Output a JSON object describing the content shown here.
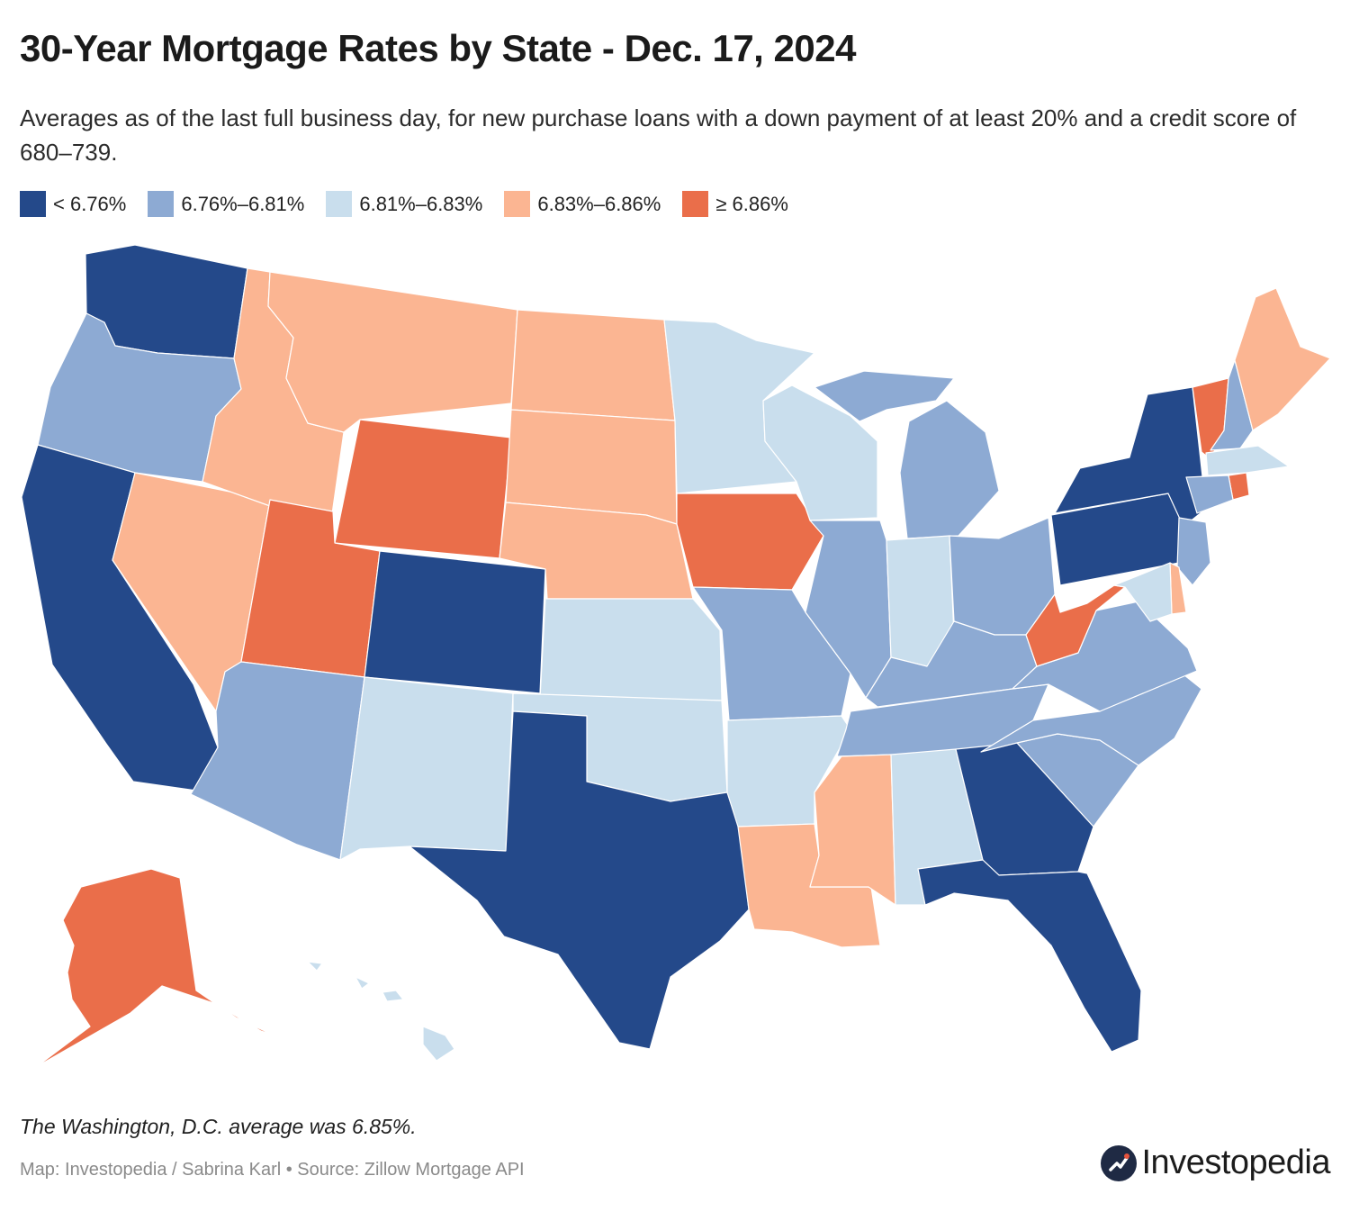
{
  "title": "30-Year Mortgage Rates by State - Dec. 17, 2024",
  "subtitle": "Averages as of the last full business day, for new purchase loans with a down payment of at least 20% and a credit score of 680–739.",
  "legend": [
    {
      "label": "< 6.76%",
      "color": "#24498a"
    },
    {
      "label": "6.76%–6.81%",
      "color": "#8daad3"
    },
    {
      "label": "6.81%–6.83%",
      "color": "#c9deed"
    },
    {
      "label": "6.83%–6.86%",
      "color": "#fbb592"
    },
    {
      "label": "≥ 6.86%",
      "color": "#ea6e4a"
    }
  ],
  "note": "The Washington, D.C. average was 6.85%.",
  "source": "Map: Investopedia / Sabrina Karl • Source: Zillow Mortgage API",
  "brand": "Investopedia",
  "brand_icon": "investopedia-logo-icon",
  "states": [
    {
      "code": "WA",
      "bin": 0
    },
    {
      "code": "OR",
      "bin": 1
    },
    {
      "code": "CA",
      "bin": 0
    },
    {
      "code": "NV",
      "bin": 3
    },
    {
      "code": "ID",
      "bin": 3
    },
    {
      "code": "MT",
      "bin": 3
    },
    {
      "code": "WY",
      "bin": 4
    },
    {
      "code": "UT",
      "bin": 4
    },
    {
      "code": "AZ",
      "bin": 1
    },
    {
      "code": "CO",
      "bin": 0
    },
    {
      "code": "NM",
      "bin": 2
    },
    {
      "code": "ND",
      "bin": 3
    },
    {
      "code": "SD",
      "bin": 3
    },
    {
      "code": "NE",
      "bin": 3
    },
    {
      "code": "KS",
      "bin": 2
    },
    {
      "code": "OK",
      "bin": 2
    },
    {
      "code": "TX",
      "bin": 0
    },
    {
      "code": "MN",
      "bin": 2
    },
    {
      "code": "IA",
      "bin": 4
    },
    {
      "code": "MO",
      "bin": 1
    },
    {
      "code": "AR",
      "bin": 2
    },
    {
      "code": "LA",
      "bin": 3
    },
    {
      "code": "WI",
      "bin": 2
    },
    {
      "code": "IL",
      "bin": 1
    },
    {
      "code": "MI",
      "bin": 1
    },
    {
      "code": "IN",
      "bin": 2
    },
    {
      "code": "OH",
      "bin": 1
    },
    {
      "code": "KY",
      "bin": 1
    },
    {
      "code": "TN",
      "bin": 1
    },
    {
      "code": "MS",
      "bin": 3
    },
    {
      "code": "AL",
      "bin": 2
    },
    {
      "code": "GA",
      "bin": 0
    },
    {
      "code": "FL",
      "bin": 0
    },
    {
      "code": "SC",
      "bin": 1
    },
    {
      "code": "NC",
      "bin": 1
    },
    {
      "code": "VA",
      "bin": 1
    },
    {
      "code": "WV",
      "bin": 4
    },
    {
      "code": "PA",
      "bin": 0
    },
    {
      "code": "NY",
      "bin": 0
    },
    {
      "code": "VT",
      "bin": 4
    },
    {
      "code": "NH",
      "bin": 1
    },
    {
      "code": "ME",
      "bin": 3
    },
    {
      "code": "MA",
      "bin": 2
    },
    {
      "code": "RI",
      "bin": 4
    },
    {
      "code": "CT",
      "bin": 1
    },
    {
      "code": "NJ",
      "bin": 1
    },
    {
      "code": "DE",
      "bin": 3
    },
    {
      "code": "MD",
      "bin": 2
    },
    {
      "code": "AK",
      "bin": 4
    },
    {
      "code": "HI",
      "bin": 2
    }
  ]
}
